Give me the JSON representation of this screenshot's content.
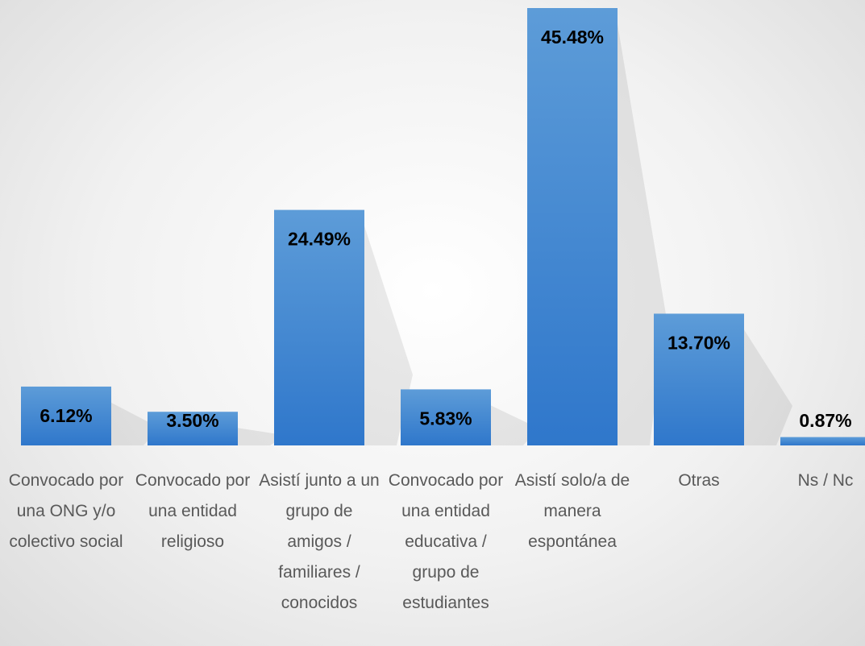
{
  "chart_data": {
    "type": "bar",
    "categories": [
      "Convocado por una ONG y/o colectivo social",
      "Convocado por una entidad religioso",
      "Asistí junto a un grupo de amigos / familiares / conocidos",
      "Convocado por una entidad educativa / grupo de estudiantes",
      "Asistí solo/a de manera espontánea",
      "Otras",
      "Ns / Nc"
    ],
    "values": [
      6.12,
      3.5,
      24.49,
      5.83,
      45.48,
      13.7,
      0.87
    ],
    "value_labels": [
      "6.12%",
      "3.50%",
      "24.49%",
      "5.83%",
      "45.48%",
      "13.70%",
      "0.87%"
    ],
    "color": "#4a8ad4"
  }
}
